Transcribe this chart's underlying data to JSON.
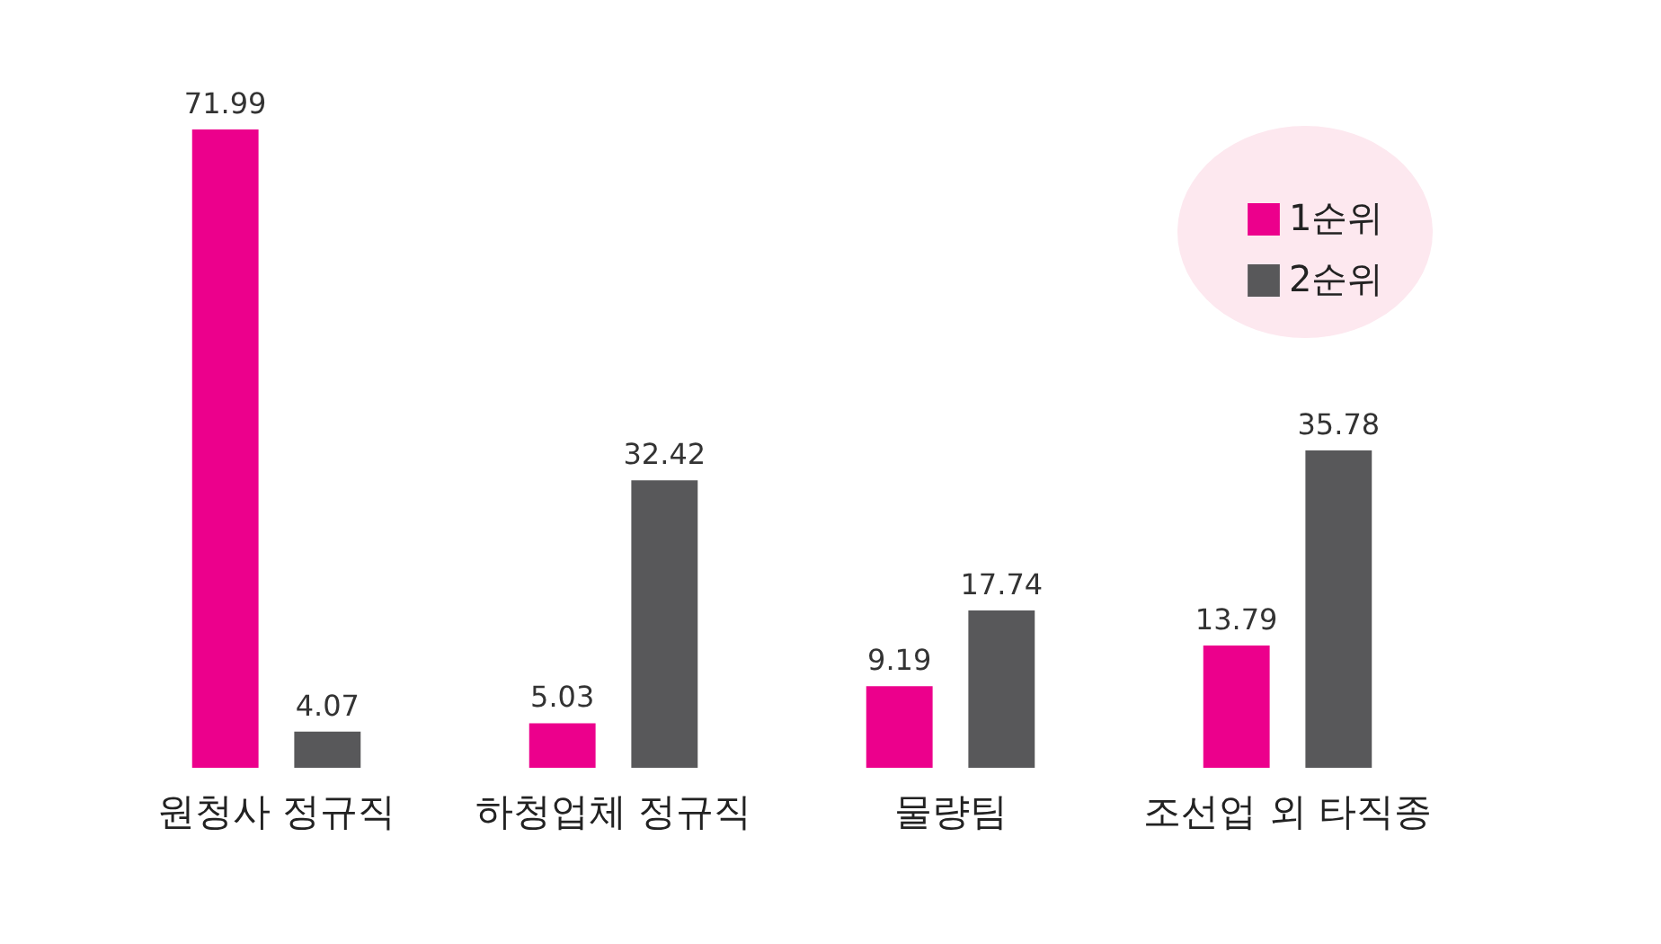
{
  "chart_data": {
    "type": "bar",
    "categories": [
      "원청사 정규직",
      "하청업체 정규직",
      "물량팀",
      "조선업 외 타직종"
    ],
    "series": [
      {
        "name": "1순위",
        "color": "#ec008c",
        "values": [
          71.99,
          5.03,
          9.19,
          13.79
        ]
      },
      {
        "name": "2순위",
        "color": "#58585a",
        "values": [
          4.07,
          32.42,
          17.74,
          35.78
        ]
      }
    ],
    "data_labels": true,
    "legend": "top right",
    "grid": false
  }
}
